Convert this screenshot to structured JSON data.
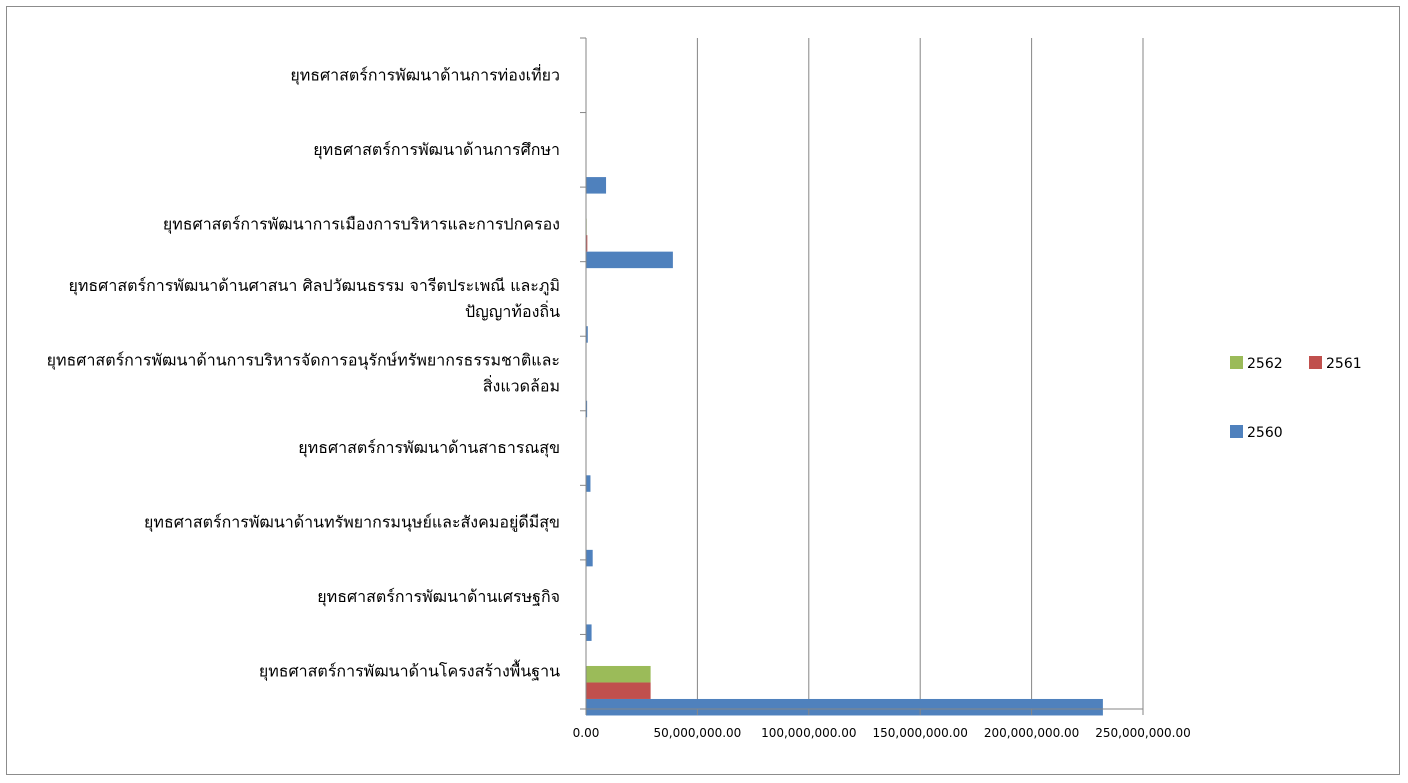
{
  "chart_data": {
    "type": "bar",
    "orientation": "horizontal",
    "title": "",
    "xlabel": "",
    "ylabel": "",
    "xlim": [
      0,
      250000000
    ],
    "x_ticks": [
      0,
      50000000,
      100000000,
      150000000,
      200000000,
      250000000
    ],
    "x_tick_labels": [
      "0.00",
      "50,000,000.00",
      "100,000,000.00",
      "150,000,000.00",
      "200,000,000.00",
      "250,000,000.00"
    ],
    "grid": "vertical-major",
    "legend_position": "right",
    "categories": [
      {
        "lines": [
          "ยุทธศาสตร์การพัฒนาด้านการท่องเที่ยว"
        ]
      },
      {
        "lines": [
          "ยุทธศาสตร์การพัฒนาด้านการศึกษา"
        ]
      },
      {
        "lines": [
          "ยุทธศาสตร์การพัฒนาการเมืองการบริหารและการปกครอง"
        ]
      },
      {
        "lines": [
          "ยุทธศาสตร์การพัฒนาด้านศาสนา ศิลปวัฒนธรรม จารีตประเพณี และภูมิ",
          "ปัญญาท้องถิ่น"
        ]
      },
      {
        "lines": [
          "ยุทธศาสตร์การพัฒนาด้านการบริหารจัดการอนุรักษ์ทรัพยากรธรรมชาติและ",
          "สิ่งแวดล้อม"
        ]
      },
      {
        "lines": [
          "ยุทธศาสตร์การพัฒนาด้านสาธารณสุข"
        ]
      },
      {
        "lines": [
          "ยุทธศาสตร์การพัฒนาด้านทรัพยากรมนุษย์และสังคมอยู่ดีมีสุข"
        ]
      },
      {
        "lines": [
          "ยุทธศาสตร์การพัฒนาด้านเศรษฐกิจ"
        ]
      },
      {
        "lines": [
          "ยุทธศาสตร์การพัฒนาด้านโครงสร้างพื้นฐาน"
        ]
      }
    ],
    "series": [
      {
        "name": "2560",
        "color": "#4f81bd",
        "values": [
          0,
          9000000,
          39000000,
          800000,
          500000,
          2000000,
          3000000,
          2500000,
          232000000
        ]
      },
      {
        "name": "2561",
        "color": "#c0504d",
        "values": [
          0,
          0,
          600000,
          0,
          0,
          0,
          0,
          0,
          29000000
        ]
      },
      {
        "name": "2562",
        "color": "#9bbb59",
        "values": [
          0,
          0,
          300000,
          0,
          0,
          0,
          0,
          0,
          29000000
        ]
      }
    ],
    "legend": [
      {
        "name": "2562",
        "color": "#9bbb59"
      },
      {
        "name": "2561",
        "color": "#c0504d"
      },
      {
        "name": "2560",
        "color": "#4f81bd"
      }
    ]
  }
}
